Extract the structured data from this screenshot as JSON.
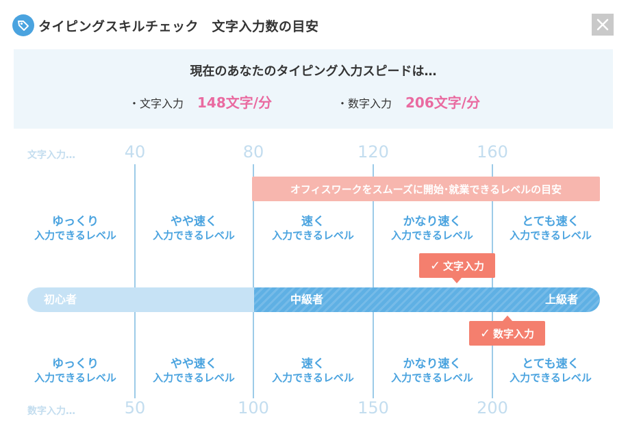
{
  "header": {
    "title": "タイピングスキルチェック　文字入力数の目安",
    "icon": "tag-icon",
    "close_icon": "close-icon"
  },
  "result": {
    "title": "現在のあなたのタイピング入力スピードは…",
    "char_label": "・文字入力",
    "char_value": "148文字/分",
    "num_label": "・数字入力",
    "num_value": "206文字/分"
  },
  "scale": {
    "top_label": "文字入力…",
    "top_ticks": [
      "40",
      "80",
      "120",
      "160"
    ],
    "bottom_label": "数字入力…",
    "bottom_ticks": [
      "50",
      "100",
      "150",
      "200"
    ]
  },
  "office_banner": "オフィスワークをスムーズに開始･就業できるレベルの目安",
  "levels": [
    {
      "line1": "ゆっくり",
      "line2": "入力できるレベル"
    },
    {
      "line1": "やや速く",
      "line2": "入力できるレベル"
    },
    {
      "line1": "速く",
      "line2": "入力できるレベル"
    },
    {
      "line1": "かなり速く",
      "line2": "入力できるレベル"
    },
    {
      "line1": "とても速く",
      "line2": "入力できるレベル"
    }
  ],
  "bar": {
    "beginner": "初心者",
    "intermediate": "中級者",
    "advanced": "上級者"
  },
  "markers": {
    "char": "文字入力",
    "num": "数字入力",
    "check_icon": "check-icon"
  },
  "colors": {
    "accent_blue": "#4aa3df",
    "pink_value": "#e96aa0",
    "marker": "#f47f6e",
    "banner": "#f7b6ae"
  }
}
